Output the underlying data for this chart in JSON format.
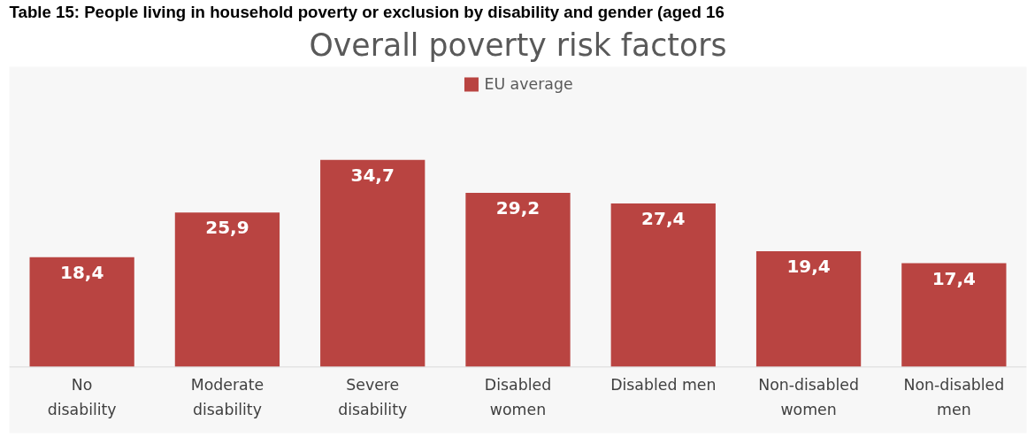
{
  "chart_data": {
    "type": "bar",
    "title": "Overall poverty risk factors",
    "annotations": [
      "Table 15: People living in household poverty or exclusion by disability and gender (aged 16"
    ],
    "categories": [
      "No disability",
      "Moderate disability",
      "Severe disability",
      "Disabled women",
      "Disabled men",
      "Non-disabled women",
      "Non-disabled men"
    ],
    "series": [
      {
        "name": "EU average",
        "color": "#b94441",
        "values": [
          18.4,
          25.9,
          34.7,
          29.2,
          27.4,
          19.4,
          17.4
        ],
        "value_labels": [
          "18,4",
          "25,9",
          "34,7",
          "29,2",
          "27,4",
          "19,4",
          "17,4"
        ]
      }
    ],
    "legend": "top",
    "grid": false
  }
}
